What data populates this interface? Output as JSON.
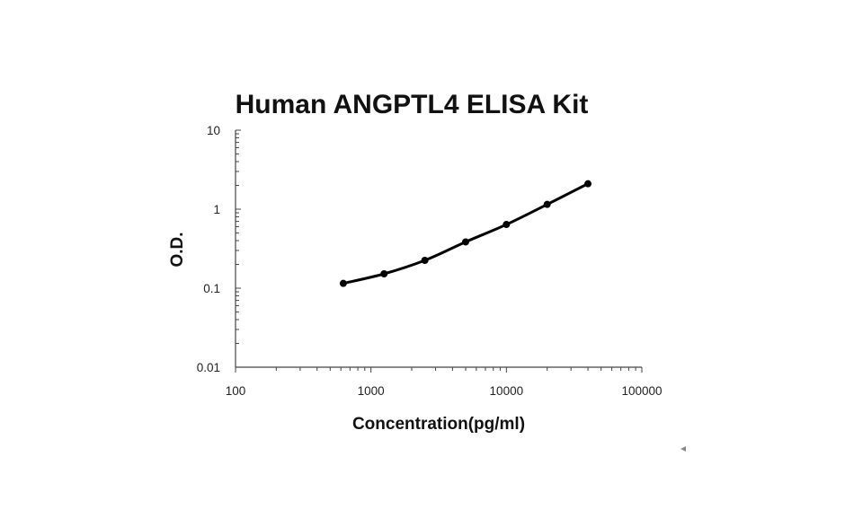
{
  "chart_data": {
    "type": "line",
    "title": "Human ANGPTL4 ELISA Kit",
    "xlabel": "Concentration(pg/ml)",
    "ylabel": "O.D.",
    "x_scale": "log",
    "y_scale": "log",
    "xlim": [
      100,
      100000
    ],
    "ylim": [
      0.01,
      10
    ],
    "x_ticks": [
      "100",
      "1000",
      "10000",
      "100000"
    ],
    "y_ticks": [
      "10",
      "1",
      "0.1",
      "0.01"
    ],
    "grid": false,
    "legend": "none",
    "series": [
      {
        "x": [
          625,
          1250,
          2500,
          5000,
          10000,
          20000,
          40000
        ],
        "y": [
          0.115,
          0.152,
          0.225,
          0.385,
          0.64,
          1.15,
          2.1
        ]
      }
    ]
  }
}
